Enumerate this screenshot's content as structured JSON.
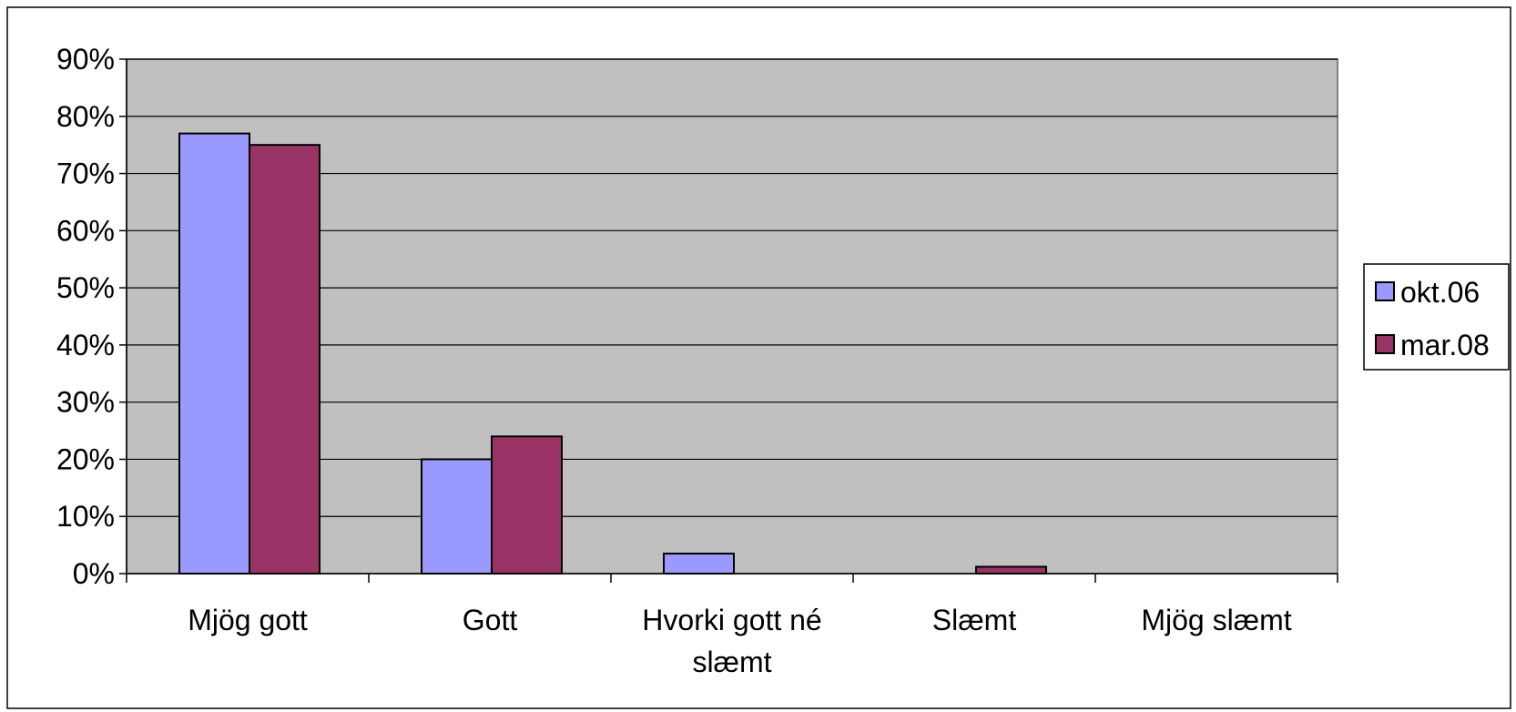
{
  "chart_data": {
    "type": "bar",
    "title": "",
    "xlabel": "",
    "ylabel": "",
    "categories": [
      [
        "Mjög gott"
      ],
      [
        "Gott"
      ],
      [
        "Hvorki gott né",
        "slæmt"
      ],
      [
        "Slæmt"
      ],
      [
        "Mjög slæmt"
      ]
    ],
    "series": [
      {
        "name": "okt.06",
        "color": "#9999ff",
        "values": [
          77,
          20,
          3.5,
          0,
          0
        ]
      },
      {
        "name": "mar.08",
        "color": "#993366",
        "values": [
          75,
          24,
          0,
          1.2,
          0
        ]
      }
    ],
    "ylim": [
      0,
      90
    ],
    "yticks": [
      0,
      10,
      20,
      30,
      40,
      50,
      60,
      70,
      80,
      90
    ],
    "ytick_labels": [
      "0%",
      "10%",
      "20%",
      "30%",
      "40%",
      "50%",
      "60%",
      "70%",
      "80%",
      "90%"
    ],
    "grid": true,
    "plot_background": "#c0c0c0",
    "legend_position": "right"
  }
}
